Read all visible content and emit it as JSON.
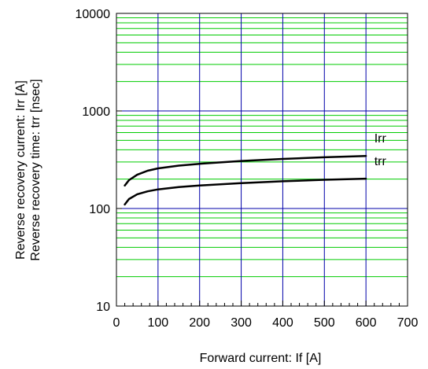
{
  "chart_data": {
    "type": "line",
    "xlabel": "Forward current: If [A]",
    "ylabel_lines": [
      "Reverse recovery current: Irr [A]",
      "Reverse recovery time: trr [nsec]"
    ],
    "xlim": [
      0,
      700
    ],
    "ylim": [
      10,
      10000
    ],
    "y_scale": "log",
    "x_ticks": [
      "0",
      "100",
      "200",
      "300",
      "400",
      "500",
      "600",
      "700"
    ],
    "y_ticks": [
      "10",
      "100",
      "1000",
      "10000"
    ],
    "grid": true,
    "series": [
      {
        "name": "Irr",
        "x": [
          20,
          30,
          50,
          75,
          100,
          150,
          200,
          300,
          400,
          500,
          600
        ],
        "y": [
          172,
          195,
          222,
          244,
          258,
          275,
          287,
          307,
          322,
          335,
          346
        ]
      },
      {
        "name": "trr",
        "x": [
          20,
          30,
          50,
          75,
          100,
          150,
          200,
          300,
          400,
          500,
          600
        ],
        "y": [
          110,
          125,
          140,
          150,
          157,
          166,
          172,
          182,
          190,
          197,
          202
        ]
      }
    ],
    "colors": {
      "minor_grid": "#00cc00",
      "major_grid": "#0000aa",
      "curve": "#000000"
    }
  }
}
